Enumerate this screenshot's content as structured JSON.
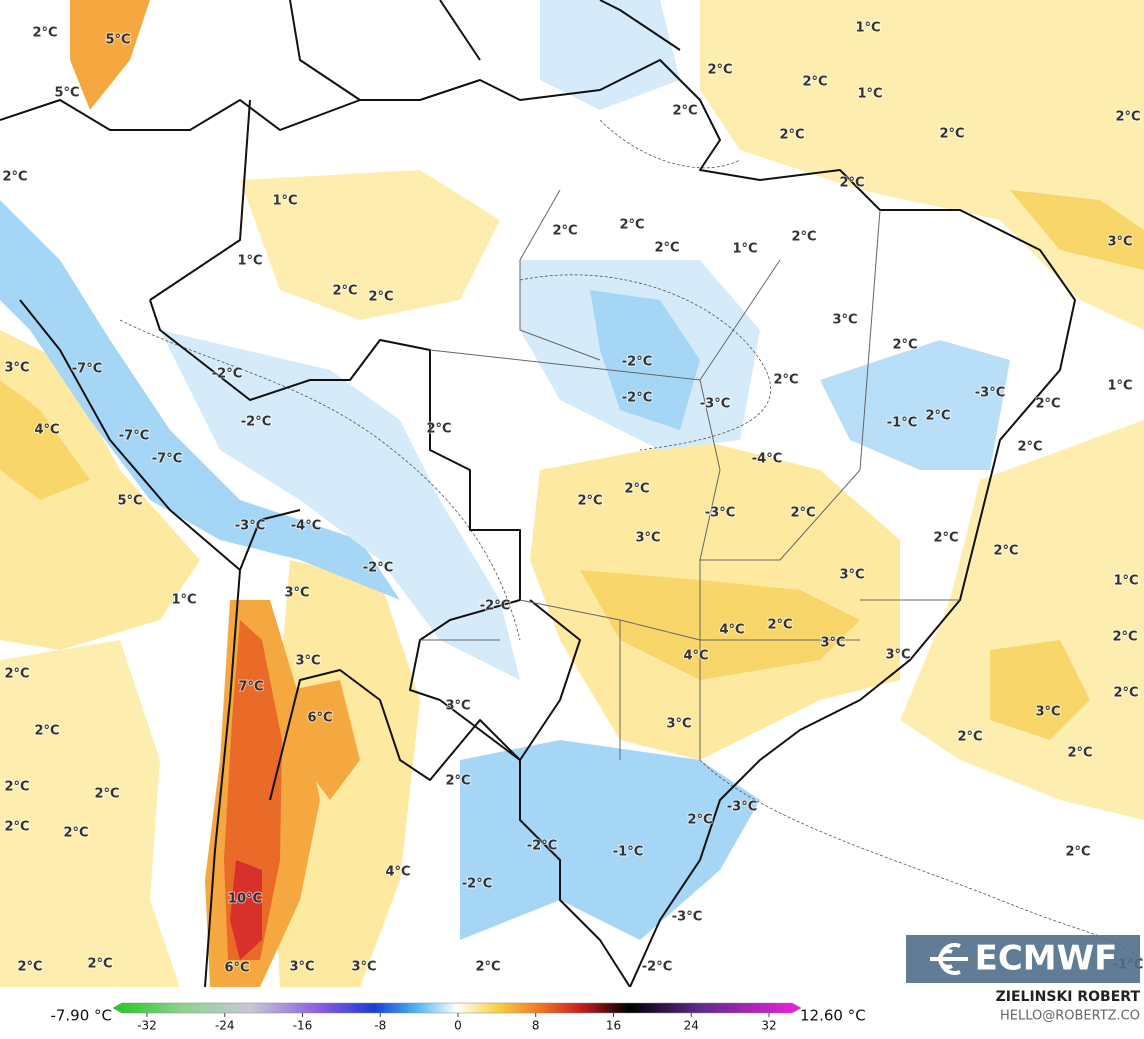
{
  "map": {
    "labels": [
      "2°C",
      "5°C",
      "5°C",
      "2°C",
      "1°C",
      "2°C",
      "2°C",
      "1°C",
      "2°C",
      "2°C",
      "2°C",
      "2°C",
      "2°C",
      "1°C",
      "2°C",
      "2°C",
      "2°C",
      "1°C",
      "2°C",
      "3°C",
      "1°C",
      "2°C",
      "2°C",
      "3°C",
      "2°C",
      "3°C",
      "-7°C",
      "-2°C",
      "-2°C",
      "2°C",
      "1°C",
      "-3°C",
      "-2°C",
      "-3°C",
      "2°C",
      "-1°C",
      "2°C",
      "4°C",
      "-7°C",
      "-2°C",
      "2°C",
      "2°C",
      "-7°C",
      "-4°C",
      "5°C",
      "2°C",
      "2°C",
      "-3°C",
      "2°C",
      "-3°C",
      "-4°C",
      "3°C",
      "2°C",
      "2°C",
      "-2°C",
      "3°C",
      "1°C",
      "3°C",
      "1°C",
      "-2°C",
      "4°C",
      "2°C",
      "3°C",
      "2°C",
      "2°C",
      "4°C",
      "3°C",
      "3°C",
      "7°C",
      "2°C",
      "3°C",
      "6°C",
      "3°C",
      "3°C",
      "2°C",
      "2°C",
      "2°C",
      "2°C",
      "2°C",
      "2°C",
      "-3°C",
      "2°C",
      "2°C",
      "2°C",
      "-2°C",
      "-1°C",
      "2°C",
      "4°C",
      "-2°C",
      "10°C",
      "-3°C",
      "2°C",
      "2°C",
      "6°C",
      "3°C",
      "3°C",
      "2°C",
      "-2°C",
      "-1°C"
    ]
  },
  "colorbar": {
    "min_label": "-7.90 °C",
    "max_label": "12.60 °C",
    "ticks": [
      -32,
      -24,
      -16,
      -8,
      0,
      8,
      16,
      24,
      32
    ]
  },
  "logo": "ECMWF",
  "credit": {
    "name": "ZIELINSKI ROBERT",
    "email": "HELLO@ROBERTZ.CO"
  }
}
